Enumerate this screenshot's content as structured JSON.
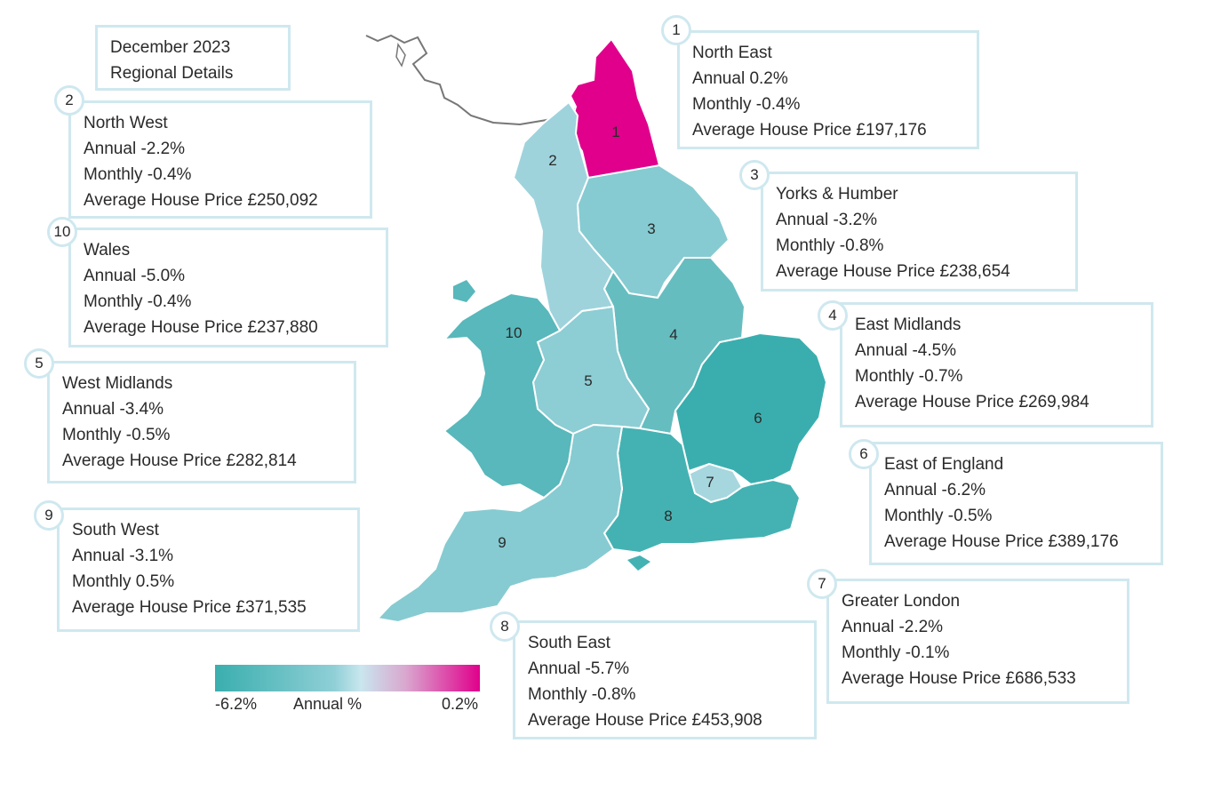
{
  "header": {
    "line1": "December 2023",
    "line2": "Regional Details"
  },
  "legend": {
    "min_label": "-6.2%",
    "title": "Annual %",
    "max_label": "0.2%",
    "colors": {
      "min": "#3aaeae",
      "mid": "#c9e6ee",
      "max": "#e0008c"
    }
  },
  "regions": [
    {
      "number": "1",
      "name": "North East",
      "annual": "Annual 0.2%",
      "monthly": "Monthly -0.4%",
      "price": "Average House Price £197,176",
      "annual_value": 0.2,
      "color": "#e0008c"
    },
    {
      "number": "2",
      "name": "North West",
      "annual": "Annual -2.2%",
      "monthly": "Monthly -0.4%",
      "price": "Average House Price £250,092",
      "annual_value": -2.2,
      "color": "#9ed3dc"
    },
    {
      "number": "3",
      "name": "Yorks & Humber",
      "annual": "Annual -3.2%",
      "monthly": "Monthly -0.8%",
      "price": "Average House Price £238,654",
      "annual_value": -3.2,
      "color": "#86cbd1"
    },
    {
      "number": "4",
      "name": "East Midlands",
      "annual": "Annual -4.5%",
      "monthly": "Monthly -0.7%",
      "price": "Average House Price £269,984",
      "annual_value": -4.5,
      "color": "#66bdc0"
    },
    {
      "number": "5",
      "name": "West Midlands",
      "annual": "Annual -3.4%",
      "monthly": "Monthly -0.5%",
      "price": "Average House Price £282,814",
      "annual_value": -3.4,
      "color": "#8dcdd4"
    },
    {
      "number": "6",
      "name": "East of England",
      "annual": "Annual -6.2%",
      "monthly": "Monthly -0.5%",
      "price": "Average House Price £389,176",
      "annual_value": -6.2,
      "color": "#3aaeae"
    },
    {
      "number": "7",
      "name": "Greater London",
      "annual": "Annual -2.2%",
      "monthly": "Monthly -0.1%",
      "price": "Average House Price £686,533",
      "annual_value": -2.2,
      "color": "#a6d6de"
    },
    {
      "number": "8",
      "name": "South East",
      "annual": "Annual -5.7%",
      "monthly": "Monthly -0.8%",
      "price": "Average House Price £453,908",
      "annual_value": -5.7,
      "color": "#44b2b3"
    },
    {
      "number": "9",
      "name": "South West",
      "annual": "Annual -3.1%",
      "monthly": "Monthly 0.5%",
      "price": "Average House Price £371,535",
      "annual_value": -3.1,
      "color": "#86cbd1"
    },
    {
      "number": "10",
      "name": "Wales",
      "annual": "Annual -5.0%",
      "monthly": "Monthly -0.4%",
      "price": "Average House Price £237,880",
      "annual_value": -5.0,
      "color": "#58b8bb"
    }
  ]
}
